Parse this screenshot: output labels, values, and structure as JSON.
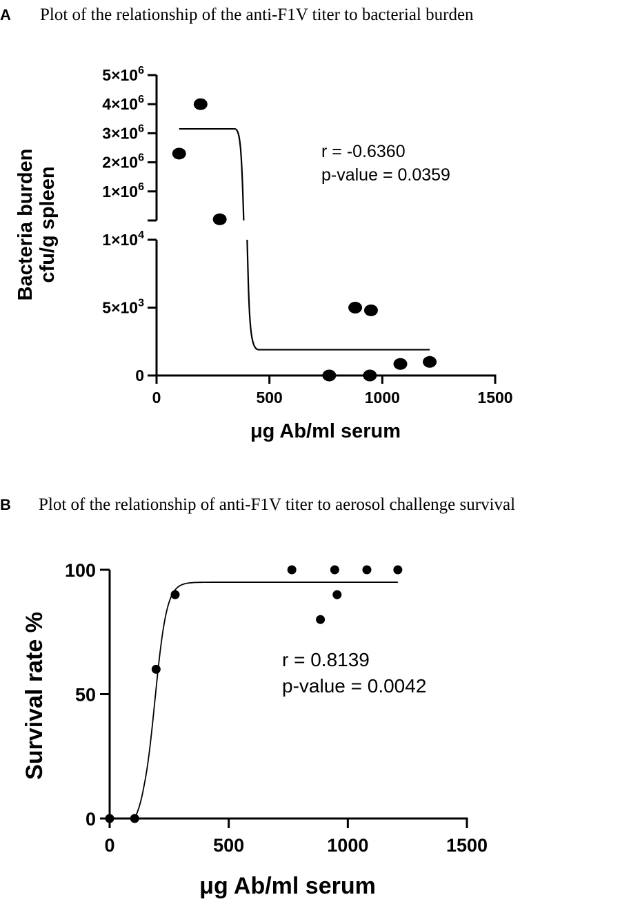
{
  "panels": {
    "a": {
      "letter": "A",
      "title": "Plot of the relationship of the anti-F1V titer to bacterial burden"
    },
    "b": {
      "letter": "B",
      "title": "Plot of the relationship of anti-F1V titer to aerosol challenge survival"
    }
  },
  "chart_data": [
    {
      "type": "scatter",
      "title": "Plot of the relationship of the anti-F1V titer to bacterial burden",
      "xlabel": "μg Ab/ml serum",
      "ylabel_lines": [
        "Bacteria burden",
        "cfu/g spleen"
      ],
      "xlim": [
        0,
        1500
      ],
      "x_ticks": [
        0,
        500,
        1000,
        1500
      ],
      "y_axis_broken": true,
      "y_segments": [
        {
          "range": [
            0,
            10000
          ],
          "ticks": [
            0,
            5000,
            10000
          ]
        },
        {
          "range": [
            0,
            5000000
          ],
          "ticks": [
            1000000,
            2000000,
            3000000,
            4000000,
            5000000
          ]
        }
      ],
      "y_tick_labels": {
        "0": {
          "base": "0",
          "exp": ""
        },
        "5000": {
          "base": "5×10",
          "exp": "3"
        },
        "10000": {
          "base": "1×10",
          "exp": "4"
        },
        "1000000": {
          "base": "1×10",
          "exp": "6"
        },
        "2000000": {
          "base": "2×10",
          "exp": "6"
        },
        "3000000": {
          "base": "3×10",
          "exp": "6"
        },
        "4000000": {
          "base": "4×10",
          "exp": "6"
        },
        "5000000": {
          "base": "5×10",
          "exp": "6"
        }
      },
      "points": [
        {
          "x": 100,
          "y": 2300000
        },
        {
          "x": 195,
          "y": 4000000
        },
        {
          "x": 280,
          "y": 40000
        },
        {
          "x": 765,
          "y": 0
        },
        {
          "x": 880,
          "y": 5000
        },
        {
          "x": 945,
          "y": 0
        },
        {
          "x": 950,
          "y": 4800
        },
        {
          "x": 1080,
          "y": 850
        },
        {
          "x": 1210,
          "y": 1000
        }
      ],
      "fit_curve": {
        "x_start": 100,
        "x_end": 1210,
        "top": 3150000,
        "bottom": 1900,
        "midpoint": 270
      },
      "stats": {
        "r": "r = -0.6360",
        "p": "p-value = 0.0359"
      },
      "grid": false,
      "legend": "none"
    },
    {
      "type": "scatter",
      "title": "Plot of the relationship of anti-F1V titer to aerosol challenge survival",
      "xlabel": "μg Ab/ml serum",
      "ylabel": "Survival rate %",
      "xlim": [
        0,
        1500
      ],
      "ylim": [
        0,
        100
      ],
      "x_ticks": [
        0,
        500,
        1000,
        1500
      ],
      "y_ticks": [
        0,
        50,
        100
      ],
      "points": [
        {
          "x": 0,
          "y": 0
        },
        {
          "x": 105,
          "y": 0
        },
        {
          "x": 195,
          "y": 60
        },
        {
          "x": 275,
          "y": 90
        },
        {
          "x": 765,
          "y": 100
        },
        {
          "x": 885,
          "y": 80
        },
        {
          "x": 945,
          "y": 100
        },
        {
          "x": 955,
          "y": 90
        },
        {
          "x": 1080,
          "y": 100
        },
        {
          "x": 1210,
          "y": 100
        }
      ],
      "fit_curve": {
        "type": "logistic",
        "x_start": 105,
        "x_end": 1210,
        "top": 95,
        "bottom": 0,
        "ec50": 190,
        "width": 25
      },
      "stats": {
        "r": "r = 0.8139",
        "p": "p-value = 0.0042"
      },
      "grid": false,
      "legend": "none"
    }
  ]
}
